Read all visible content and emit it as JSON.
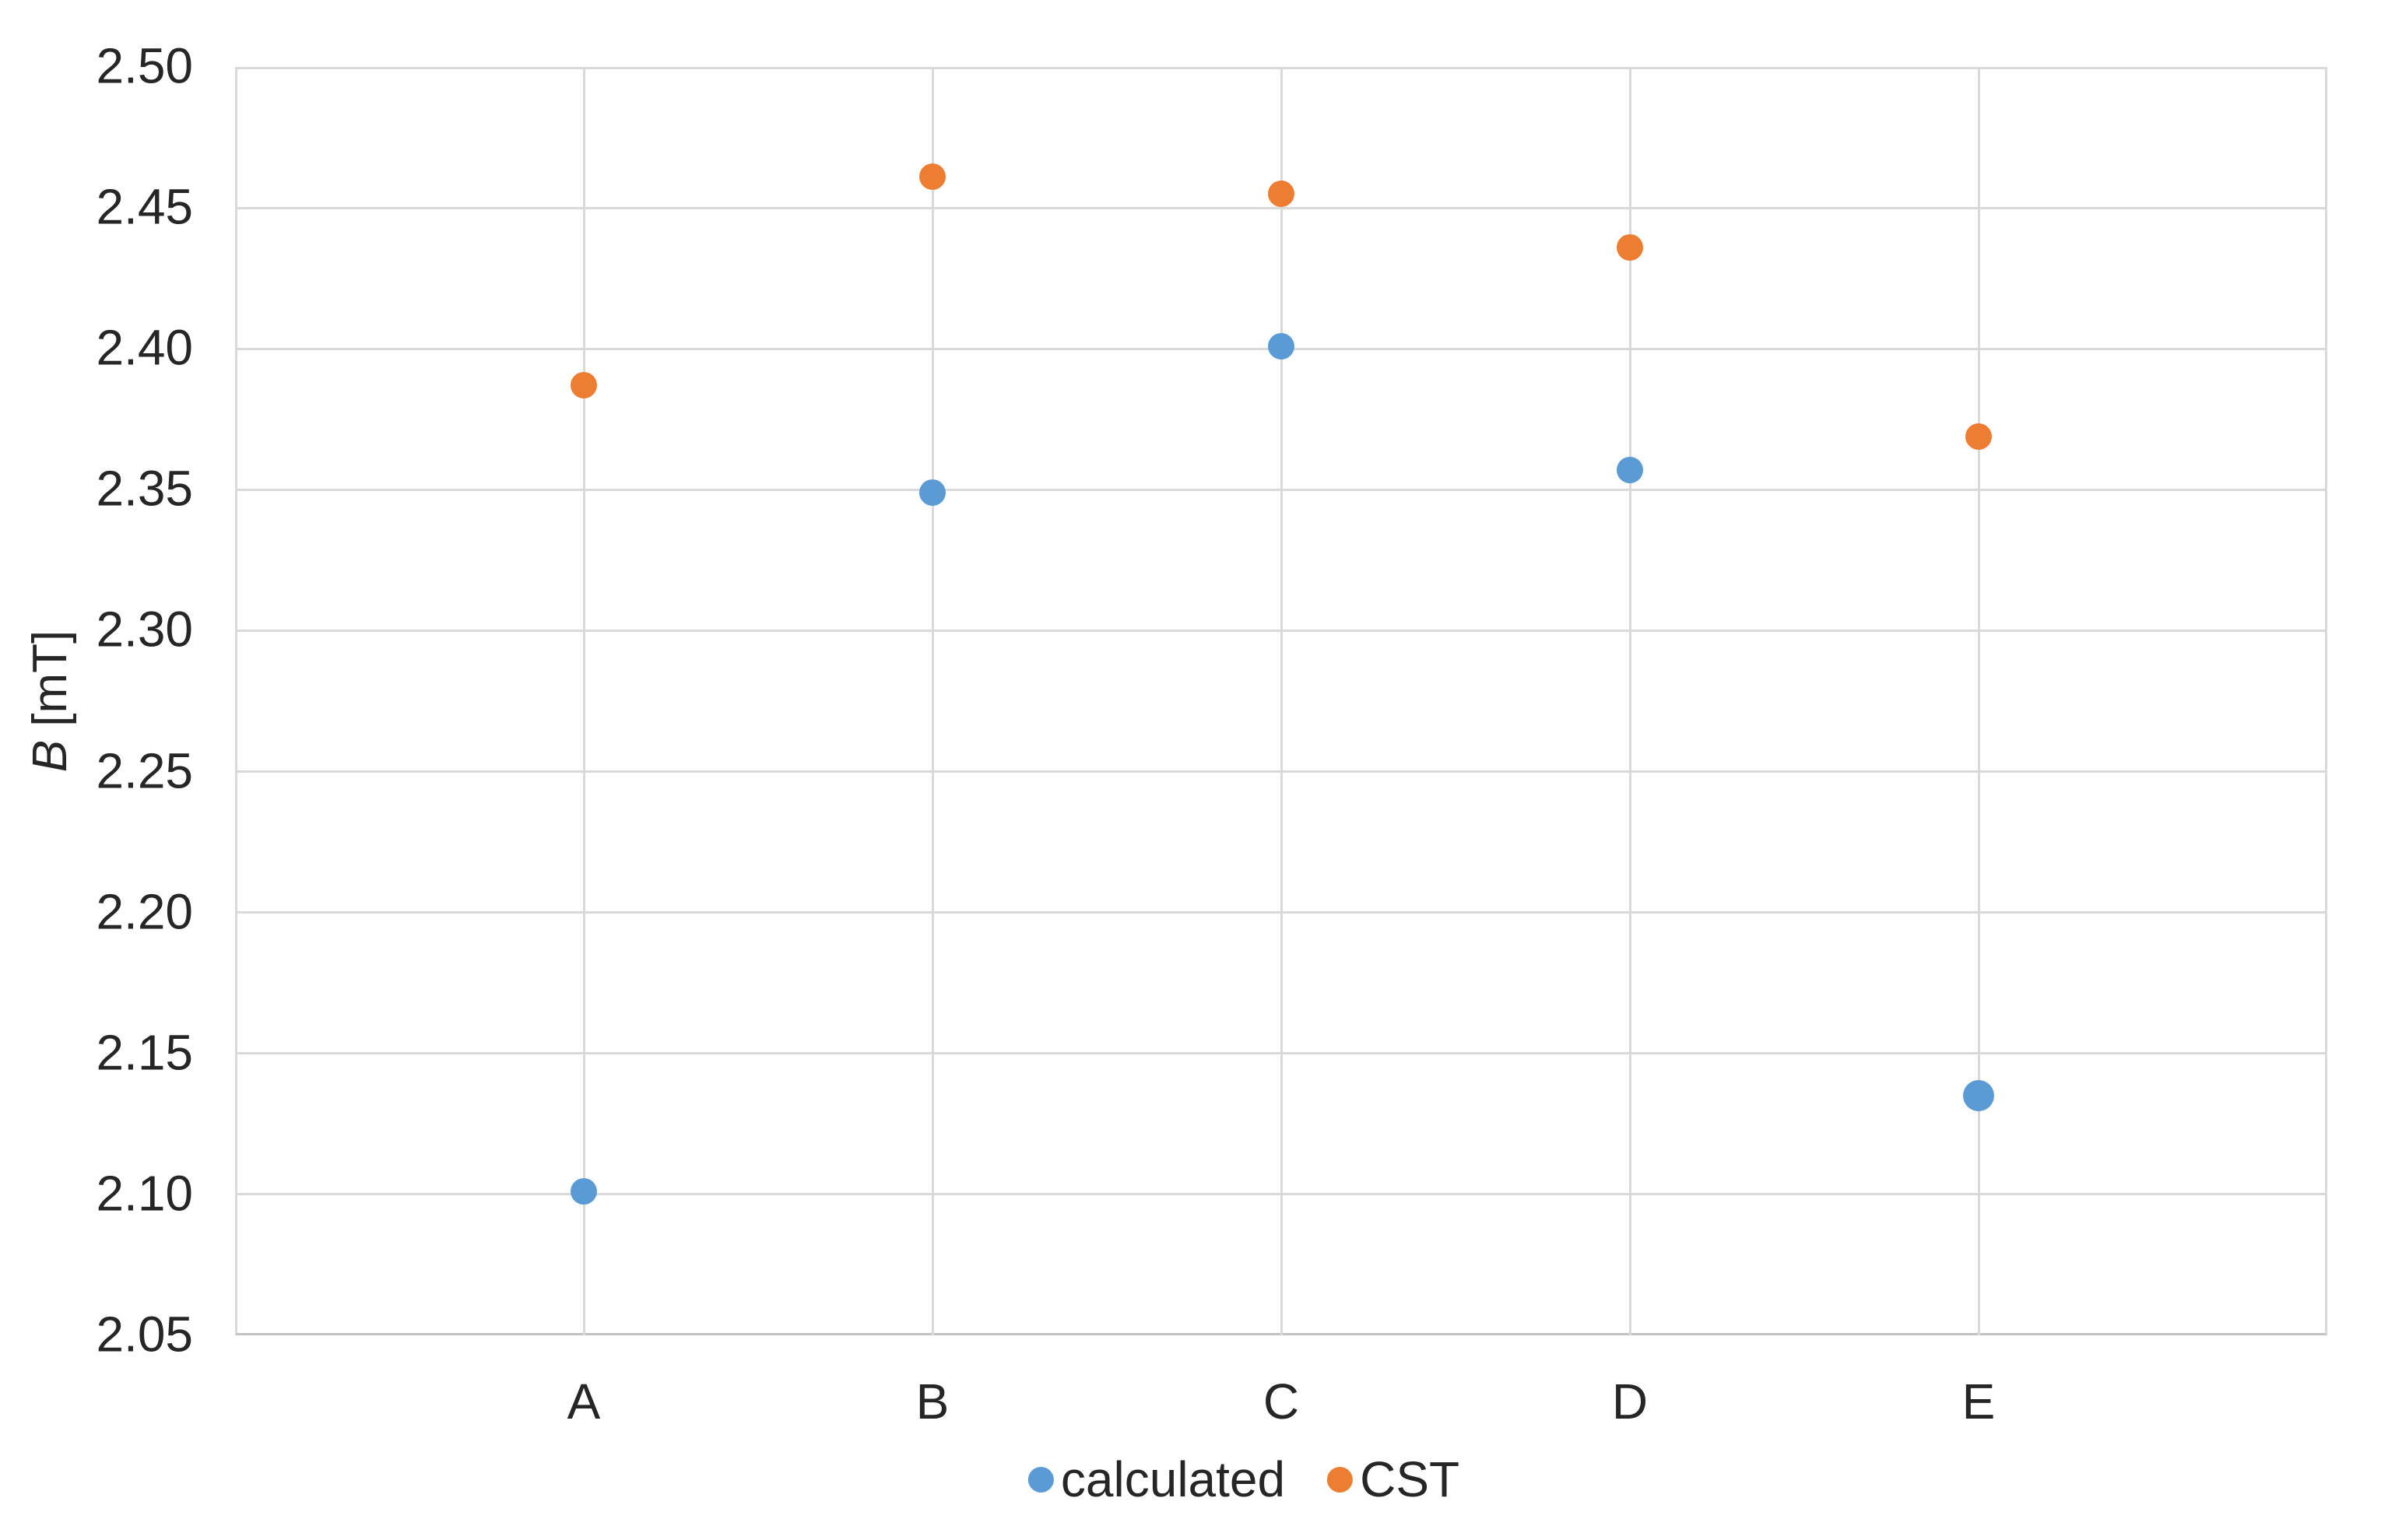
{
  "figure": {
    "yaxis_title_italic": "B",
    "yaxis_title_rest": " [mT]"
  },
  "chart_data": {
    "type": "scatter",
    "categories": [
      "A",
      "B",
      "C",
      "D",
      "E"
    ],
    "series": [
      {
        "name": "calculated",
        "color": "#5B9BD5",
        "values": [
          2.101,
          2.349,
          2.401,
          2.357,
          2.135
        ]
      },
      {
        "name": "CST",
        "color": "#ED7D31",
        "values": [
          2.387,
          2.461,
          2.455,
          2.436,
          2.369
        ]
      }
    ],
    "title": "",
    "xlabel": "",
    "ylabel": "B [mT]",
    "ylim": [
      2.05,
      2.5
    ],
    "ytick_step": 0.05,
    "ytick_labels": [
      "2.50",
      "2.45",
      "2.40",
      "2.35",
      "2.30",
      "2.25",
      "2.20",
      "2.15",
      "2.10",
      "2.05"
    ],
    "grid": true,
    "legend_position": "bottom-center"
  },
  "legend": {
    "items": [
      {
        "label": "calculated",
        "color": "#5B9BD5"
      },
      {
        "label": "CST",
        "color": "#ED7D31"
      }
    ]
  },
  "colors": {
    "background": "#FFFFFF",
    "gridline": "#D9D9D9",
    "axis_line": "#C3C3C3",
    "text": "#262626"
  }
}
